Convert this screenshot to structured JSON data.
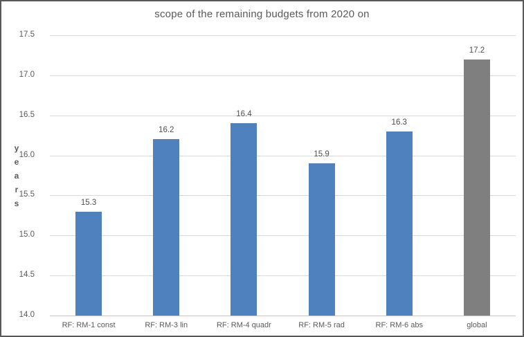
{
  "window": {
    "background": "#ffffff",
    "border_color": "#595959"
  },
  "chart_data": {
    "type": "bar",
    "title": "scope of the remaining budgets from 2020 on",
    "xlabel": "",
    "ylabel": "years",
    "ylabel_stacked_letters": [
      "y",
      "e",
      "a",
      "r",
      "s"
    ],
    "categories": [
      "RF: RM-1 const",
      "RF: RM-3 lin",
      "RF: RM-4 quadr",
      "RF: RM-5 rad",
      "RF: RM-6 abs",
      "global"
    ],
    "values": [
      15.3,
      16.2,
      16.4,
      15.9,
      16.3,
      17.2
    ],
    "data_labels": [
      "15.3",
      "16.2",
      "16.4",
      "15.9",
      "16.3",
      "17.2"
    ],
    "bar_colors": [
      "#4e81bd",
      "#4e81bd",
      "#4e81bd",
      "#4e81bd",
      "#4e81bd",
      "#7f7f7f"
    ],
    "ylim": [
      14.0,
      17.5
    ],
    "ytick_step": 0.5,
    "ytick_labels": [
      "14.0",
      "14.5",
      "15.0",
      "15.5",
      "16.0",
      "16.5",
      "17.0",
      "17.5"
    ],
    "grid": true,
    "gridline_color": "#d9d9d9",
    "axisline_color": "#c6c6c6",
    "text_color": "#595959",
    "legend": "none"
  }
}
